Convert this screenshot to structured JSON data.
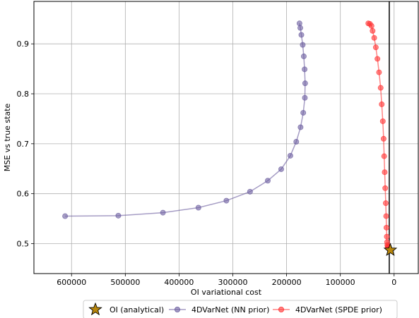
{
  "chart_data": {
    "type": "line",
    "xlabel": "OI variational cost",
    "ylabel": "MSE vs true state",
    "xlim": [
      670000,
      -45000
    ],
    "ylim": [
      0.44,
      0.985
    ],
    "x_inverted": true,
    "grid": true,
    "legend_placement": "bottom-center",
    "x_ticks": [
      600000,
      500000,
      400000,
      300000,
      200000,
      100000,
      0
    ],
    "x_tick_labels": [
      "600000",
      "500000",
      "400000",
      "300000",
      "200000",
      "100000",
      "0"
    ],
    "y_ticks": [
      0.5,
      0.6,
      0.7,
      0.8,
      0.9
    ],
    "y_tick_labels": [
      "0.5",
      "0.6",
      "0.7",
      "0.8",
      "0.9"
    ],
    "vline_x": 9000,
    "series": [
      {
        "name": "OI (analytical)",
        "marker": "star",
        "color": "#b8860b",
        "x": [
          7000
        ],
        "y": [
          0.487
        ]
      },
      {
        "name": "4DVarNet (NN prior)",
        "marker": "circle",
        "color": "#6a5c9e",
        "x": [
          612000,
          513000,
          430000,
          364000,
          312000,
          268000,
          235000,
          210000,
          193000,
          182000,
          174000,
          169000,
          166000,
          165500,
          166500,
          168000,
          170000,
          172500,
          174500,
          176000
        ],
        "y": [
          0.555,
          0.556,
          0.562,
          0.572,
          0.586,
          0.604,
          0.626,
          0.649,
          0.676,
          0.704,
          0.733,
          0.762,
          0.792,
          0.821,
          0.849,
          0.875,
          0.898,
          0.918,
          0.932,
          0.941
        ]
      },
      {
        "name": "4DVarNet (SPDE prior)",
        "marker": "circle",
        "color": "#ff3333",
        "x": [
          48000,
          45000,
          42000,
          40000,
          37000,
          34000,
          31000,
          28000,
          25000,
          23000,
          21000,
          19500,
          18500,
          17500,
          16500,
          15500,
          14800,
          14200,
          13600,
          13000,
          12500,
          12000,
          11600,
          11200
        ],
        "y": [
          0.941,
          0.94,
          0.936,
          0.926,
          0.912,
          0.893,
          0.87,
          0.843,
          0.812,
          0.779,
          0.745,
          0.71,
          0.675,
          0.643,
          0.611,
          0.581,
          0.555,
          0.532,
          0.514,
          0.503,
          0.497,
          0.494,
          0.492,
          0.491
        ]
      }
    ]
  }
}
